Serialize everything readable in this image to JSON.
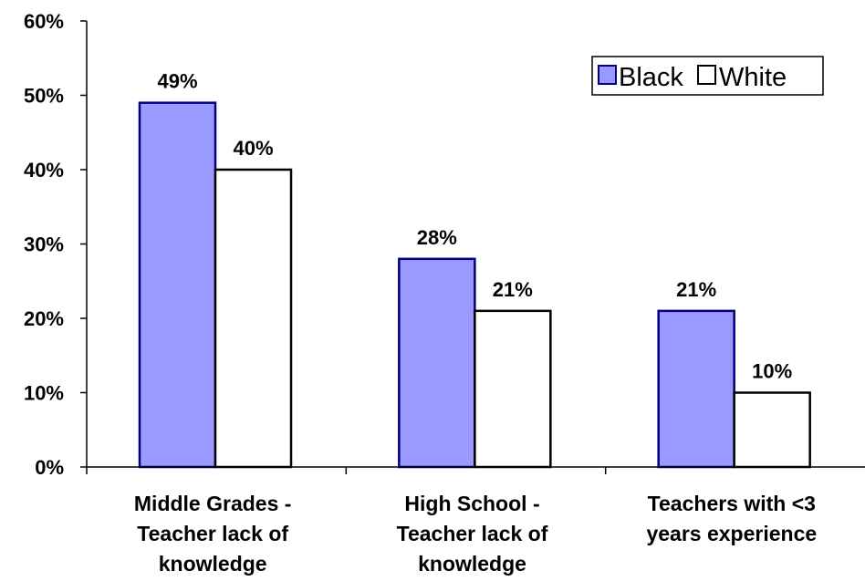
{
  "chart_data": {
    "type": "bar",
    "categories": [
      [
        "Middle Grades -",
        "Teacher lack of",
        "knowledge"
      ],
      [
        "High School  -",
        "Teacher lack of",
        "knowledge"
      ],
      [
        "Teachers with <3",
        "years experience"
      ]
    ],
    "series": [
      {
        "name": "Black",
        "values": [
          49,
          28,
          21
        ],
        "labels": [
          "49%",
          "28%",
          "21%"
        ],
        "color": "#9999ff"
      },
      {
        "name": "White",
        "values": [
          40,
          21,
          10
        ],
        "labels": [
          "40%",
          "21%",
          "10%"
        ],
        "color": "#ffffff"
      }
    ],
    "ylim": [
      0,
      60
    ],
    "yticks": [
      0,
      10,
      20,
      30,
      40,
      50,
      60
    ],
    "ytick_labels": [
      "0%",
      "10%",
      "20%",
      "30%",
      "40%",
      "50%",
      "60%"
    ],
    "grid": false,
    "legend": {
      "position": "top-right",
      "entries": [
        "Black",
        "White"
      ]
    },
    "bar_outline_color": "#000080",
    "white_outline_color": "#000000"
  }
}
